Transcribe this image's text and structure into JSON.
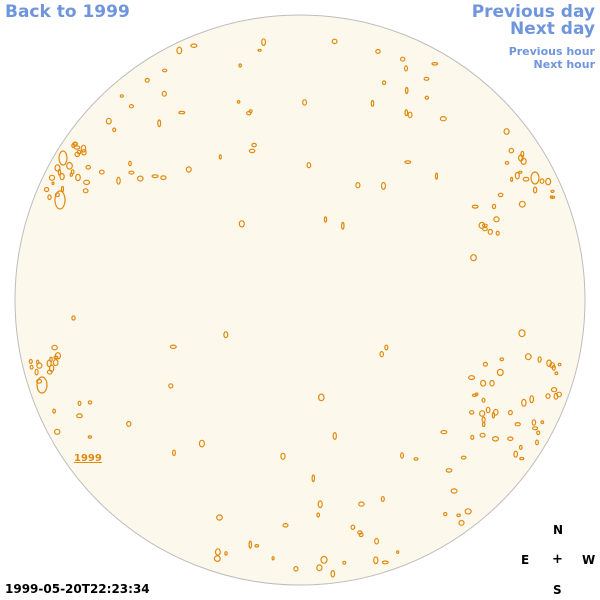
{
  "nav": {
    "back_label": "Back to 1999",
    "prev_day_label": "Previous day",
    "next_day_label": "Next day",
    "prev_hour_label": "Previous hour",
    "next_hour_label": "Next hour"
  },
  "disc": {
    "year_label": "1999",
    "fill_color": "#fdf8ec",
    "border_color": "#bdbdbd",
    "contour_color": "#e08a10"
  },
  "compass": {
    "north": "N",
    "east": "E",
    "center": "+",
    "west": "W",
    "south": "S"
  },
  "timestamp": "1999-05-20T22:23:34"
}
